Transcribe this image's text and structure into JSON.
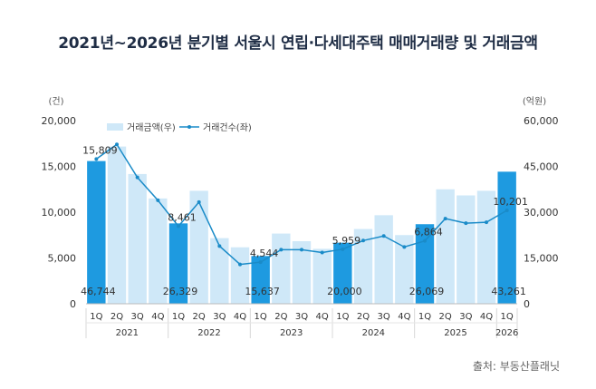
{
  "chart_data": {
    "type": "bar+line",
    "title": "2021년~2026년 분기별 서울시 연립·다세대주택 매매거래량 및 거래금액",
    "source": "출처: 부동산플래닛",
    "left_unit": "(건)",
    "right_unit": "(억원)",
    "left_ticks": [
      "0",
      "5,000",
      "10,000",
      "15,000",
      "20,000"
    ],
    "right_ticks": [
      "0",
      "15,000",
      "30,000",
      "45,000",
      "60,000"
    ],
    "ylim_left": [
      0,
      20000
    ],
    "ylim_right": [
      0,
      60000
    ],
    "legend": {
      "bar": "거래금액(우)",
      "line": "거래건수(좌)"
    },
    "quarters": [
      "1Q",
      "2Q",
      "3Q",
      "4Q",
      "1Q",
      "2Q",
      "3Q",
      "4Q",
      "1Q",
      "2Q",
      "3Q",
      "4Q",
      "1Q",
      "2Q",
      "3Q",
      "4Q",
      "1Q",
      "2Q",
      "3Q",
      "4Q",
      "1Q"
    ],
    "years": [
      {
        "label": "2021",
        "span": 4
      },
      {
        "label": "2022",
        "span": 4
      },
      {
        "label": "2023",
        "span": 4
      },
      {
        "label": "2024",
        "span": 4
      },
      {
        "label": "2025",
        "span": 4
      },
      {
        "label": "2026",
        "span": 1
      }
    ],
    "amount_values": [
      46744,
      51500,
      42500,
      34500,
      26329,
      37000,
      21500,
      18500,
      15637,
      23000,
      20500,
      18000,
      20000,
      24500,
      29000,
      22500,
      26069,
      37500,
      35500,
      37000,
      43261
    ],
    "count_values": [
      15809,
      17400,
      13800,
      11300,
      8461,
      11100,
      6300,
      4300,
      4544,
      5900,
      5900,
      5600,
      5959,
      6900,
      7400,
      6200,
      6864,
      9300,
      8800,
      8900,
      10201
    ],
    "highlight_indices": [
      0,
      4,
      8,
      12,
      16,
      20
    ],
    "count_labels": [
      "15,809",
      "8,461",
      "4,544",
      "5,959",
      "6,864",
      "10,201"
    ],
    "amount_labels": [
      "46,744",
      "26,329",
      "15,637",
      "20,000",
      "26,069",
      "43,261"
    ],
    "colors": {
      "bar": "#cfe8f8",
      "bar_highlight": "#1e9ae0",
      "line": "#1a8bc8",
      "axis": "#bbbbbb",
      "text": "#333333"
    }
  }
}
